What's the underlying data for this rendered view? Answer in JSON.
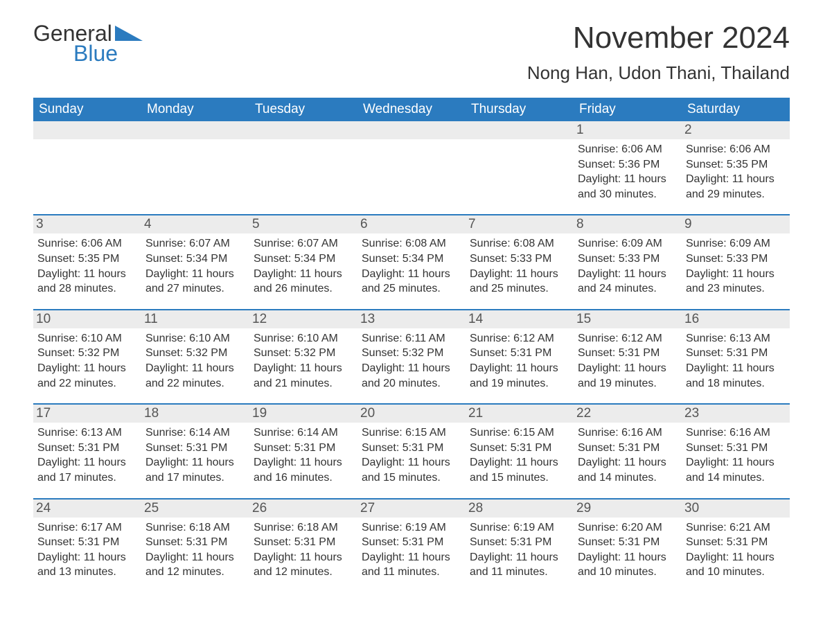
{
  "logo": {
    "text1": "General",
    "text2": "Blue",
    "accent_color": "#2b7bbf"
  },
  "header": {
    "month_title": "November 2024",
    "location": "Nong Han, Udon Thani, Thailand"
  },
  "colors": {
    "header_bg": "#2b7bbf",
    "header_text": "#ffffff",
    "day_strip_bg": "#ececec",
    "text": "#333333",
    "border": "#2b7bbf"
  },
  "weekdays": [
    "Sunday",
    "Monday",
    "Tuesday",
    "Wednesday",
    "Thursday",
    "Friday",
    "Saturday"
  ],
  "weeks": [
    [
      {
        "blank": true
      },
      {
        "blank": true
      },
      {
        "blank": true
      },
      {
        "blank": true
      },
      {
        "blank": true
      },
      {
        "num": "1",
        "sunrise": "Sunrise: 6:06 AM",
        "sunset": "Sunset: 5:36 PM",
        "day1": "Daylight: 11 hours",
        "day2": "and 30 minutes."
      },
      {
        "num": "2",
        "sunrise": "Sunrise: 6:06 AM",
        "sunset": "Sunset: 5:35 PM",
        "day1": "Daylight: 11 hours",
        "day2": "and 29 minutes."
      }
    ],
    [
      {
        "num": "3",
        "sunrise": "Sunrise: 6:06 AM",
        "sunset": "Sunset: 5:35 PM",
        "day1": "Daylight: 11 hours",
        "day2": "and 28 minutes."
      },
      {
        "num": "4",
        "sunrise": "Sunrise: 6:07 AM",
        "sunset": "Sunset: 5:34 PM",
        "day1": "Daylight: 11 hours",
        "day2": "and 27 minutes."
      },
      {
        "num": "5",
        "sunrise": "Sunrise: 6:07 AM",
        "sunset": "Sunset: 5:34 PM",
        "day1": "Daylight: 11 hours",
        "day2": "and 26 minutes."
      },
      {
        "num": "6",
        "sunrise": "Sunrise: 6:08 AM",
        "sunset": "Sunset: 5:34 PM",
        "day1": "Daylight: 11 hours",
        "day2": "and 25 minutes."
      },
      {
        "num": "7",
        "sunrise": "Sunrise: 6:08 AM",
        "sunset": "Sunset: 5:33 PM",
        "day1": "Daylight: 11 hours",
        "day2": "and 25 minutes."
      },
      {
        "num": "8",
        "sunrise": "Sunrise: 6:09 AM",
        "sunset": "Sunset: 5:33 PM",
        "day1": "Daylight: 11 hours",
        "day2": "and 24 minutes."
      },
      {
        "num": "9",
        "sunrise": "Sunrise: 6:09 AM",
        "sunset": "Sunset: 5:33 PM",
        "day1": "Daylight: 11 hours",
        "day2": "and 23 minutes."
      }
    ],
    [
      {
        "num": "10",
        "sunrise": "Sunrise: 6:10 AM",
        "sunset": "Sunset: 5:32 PM",
        "day1": "Daylight: 11 hours",
        "day2": "and 22 minutes."
      },
      {
        "num": "11",
        "sunrise": "Sunrise: 6:10 AM",
        "sunset": "Sunset: 5:32 PM",
        "day1": "Daylight: 11 hours",
        "day2": "and 22 minutes."
      },
      {
        "num": "12",
        "sunrise": "Sunrise: 6:10 AM",
        "sunset": "Sunset: 5:32 PM",
        "day1": "Daylight: 11 hours",
        "day2": "and 21 minutes."
      },
      {
        "num": "13",
        "sunrise": "Sunrise: 6:11 AM",
        "sunset": "Sunset: 5:32 PM",
        "day1": "Daylight: 11 hours",
        "day2": "and 20 minutes."
      },
      {
        "num": "14",
        "sunrise": "Sunrise: 6:12 AM",
        "sunset": "Sunset: 5:31 PM",
        "day1": "Daylight: 11 hours",
        "day2": "and 19 minutes."
      },
      {
        "num": "15",
        "sunrise": "Sunrise: 6:12 AM",
        "sunset": "Sunset: 5:31 PM",
        "day1": "Daylight: 11 hours",
        "day2": "and 19 minutes."
      },
      {
        "num": "16",
        "sunrise": "Sunrise: 6:13 AM",
        "sunset": "Sunset: 5:31 PM",
        "day1": "Daylight: 11 hours",
        "day2": "and 18 minutes."
      }
    ],
    [
      {
        "num": "17",
        "sunrise": "Sunrise: 6:13 AM",
        "sunset": "Sunset: 5:31 PM",
        "day1": "Daylight: 11 hours",
        "day2": "and 17 minutes."
      },
      {
        "num": "18",
        "sunrise": "Sunrise: 6:14 AM",
        "sunset": "Sunset: 5:31 PM",
        "day1": "Daylight: 11 hours",
        "day2": "and 17 minutes."
      },
      {
        "num": "19",
        "sunrise": "Sunrise: 6:14 AM",
        "sunset": "Sunset: 5:31 PM",
        "day1": "Daylight: 11 hours",
        "day2": "and 16 minutes."
      },
      {
        "num": "20",
        "sunrise": "Sunrise: 6:15 AM",
        "sunset": "Sunset: 5:31 PM",
        "day1": "Daylight: 11 hours",
        "day2": "and 15 minutes."
      },
      {
        "num": "21",
        "sunrise": "Sunrise: 6:15 AM",
        "sunset": "Sunset: 5:31 PM",
        "day1": "Daylight: 11 hours",
        "day2": "and 15 minutes."
      },
      {
        "num": "22",
        "sunrise": "Sunrise: 6:16 AM",
        "sunset": "Sunset: 5:31 PM",
        "day1": "Daylight: 11 hours",
        "day2": "and 14 minutes."
      },
      {
        "num": "23",
        "sunrise": "Sunrise: 6:16 AM",
        "sunset": "Sunset: 5:31 PM",
        "day1": "Daylight: 11 hours",
        "day2": "and 14 minutes."
      }
    ],
    [
      {
        "num": "24",
        "sunrise": "Sunrise: 6:17 AM",
        "sunset": "Sunset: 5:31 PM",
        "day1": "Daylight: 11 hours",
        "day2": "and 13 minutes."
      },
      {
        "num": "25",
        "sunrise": "Sunrise: 6:18 AM",
        "sunset": "Sunset: 5:31 PM",
        "day1": "Daylight: 11 hours",
        "day2": "and 12 minutes."
      },
      {
        "num": "26",
        "sunrise": "Sunrise: 6:18 AM",
        "sunset": "Sunset: 5:31 PM",
        "day1": "Daylight: 11 hours",
        "day2": "and 12 minutes."
      },
      {
        "num": "27",
        "sunrise": "Sunrise: 6:19 AM",
        "sunset": "Sunset: 5:31 PM",
        "day1": "Daylight: 11 hours",
        "day2": "and 11 minutes."
      },
      {
        "num": "28",
        "sunrise": "Sunrise: 6:19 AM",
        "sunset": "Sunset: 5:31 PM",
        "day1": "Daylight: 11 hours",
        "day2": "and 11 minutes."
      },
      {
        "num": "29",
        "sunrise": "Sunrise: 6:20 AM",
        "sunset": "Sunset: 5:31 PM",
        "day1": "Daylight: 11 hours",
        "day2": "and 10 minutes."
      },
      {
        "num": "30",
        "sunrise": "Sunrise: 6:21 AM",
        "sunset": "Sunset: 5:31 PM",
        "day1": "Daylight: 11 hours",
        "day2": "and 10 minutes."
      }
    ]
  ]
}
